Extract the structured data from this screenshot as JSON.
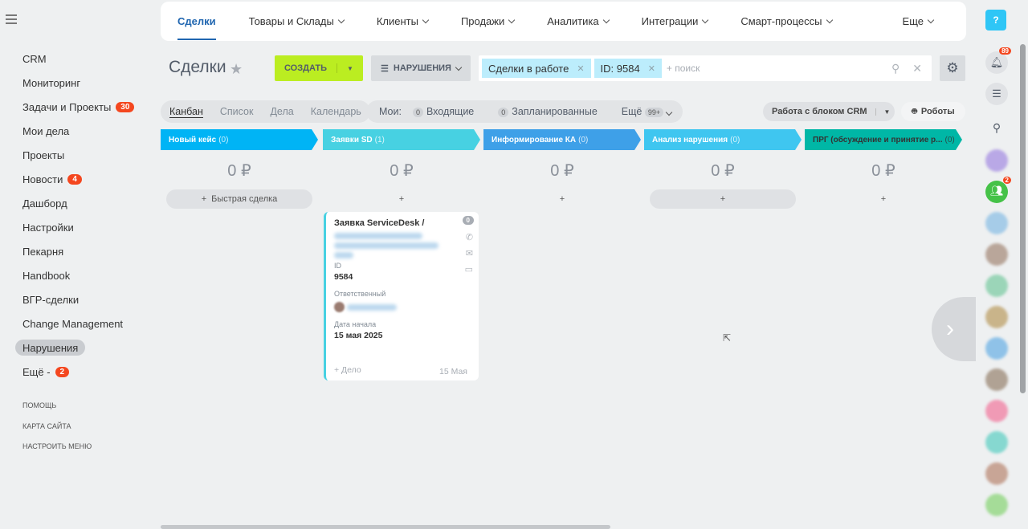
{
  "sidebar": {
    "items": [
      {
        "label": "CRM"
      },
      {
        "label": "Мониторинг"
      },
      {
        "label": "Задачи и Проекты",
        "badge": "30"
      },
      {
        "label": "Мои дела"
      },
      {
        "label": "Проекты"
      },
      {
        "label": "Новости",
        "badge": "4"
      },
      {
        "label": "Дашборд"
      },
      {
        "label": "Настройки"
      },
      {
        "label": "Пекарня"
      },
      {
        "label": "Handbook"
      },
      {
        "label": "ВГР-сделки"
      },
      {
        "label": "Change Management"
      },
      {
        "label": "Нарушения",
        "active": true
      },
      {
        "label": "Ещё -",
        "badge": "2"
      }
    ],
    "help": "Помощь",
    "sitemap": "Карта сайта",
    "configure": "Настроить меню"
  },
  "topnav": [
    "Сделки",
    "Товары и Склады",
    "Клиенты",
    "Продажи",
    "Аналитика",
    "Интеграции",
    "Смарт-процессы",
    "Еще"
  ],
  "page": {
    "title": "Сделки",
    "create": "СОЗДАТЬ",
    "filter": "НАРУШЕНИЯ",
    "chips": [
      "Сделки в работе",
      "ID: 9584"
    ],
    "search_placeholder": "+ поиск"
  },
  "views": [
    "Канбан",
    "Список",
    "Дела",
    "Календарь"
  ],
  "counters": {
    "my": "Мои:",
    "incoming_count": "0",
    "incoming": "Входящие",
    "planned_count": "0",
    "planned": "Запланированные",
    "more": "Ещё",
    "more_count": "99+"
  },
  "crm_block": "Работа с блоком CRM",
  "robots": "Роботы",
  "stages": [
    {
      "name": "Новый кейс",
      "count": "(0)",
      "sum": "0 ₽",
      "color": "#00b4f5",
      "add": "Быстрая сделка"
    },
    {
      "name": "Заявки SD",
      "count": "(1)",
      "sum": "0 ₽",
      "color": "#47d1e2",
      "add": ""
    },
    {
      "name": "Информирование КА",
      "count": "(0)",
      "sum": "0 ₽",
      "color": "#3ea0e8",
      "add": ""
    },
    {
      "name": "Анализ нарушения",
      "count": "(0)",
      "sum": "0 ₽",
      "color": "#3fc6f0",
      "add": ""
    },
    {
      "name": "ПРГ (обсуждение и принятие р...",
      "count": "(0)",
      "sum": "0 ₽",
      "color": "#00b7a6",
      "add": ""
    }
  ],
  "card": {
    "title": "Заявка ServiceDesk /",
    "counter": "0",
    "id_label": "ID",
    "id": "9584",
    "resp_label": "Ответственный",
    "date_label": "Дата начала",
    "date": "15 мая 2025",
    "add_task": "+ Дело",
    "short_date": "15 Мая"
  },
  "right": {
    "notifications": "89",
    "group_badge": "2"
  }
}
